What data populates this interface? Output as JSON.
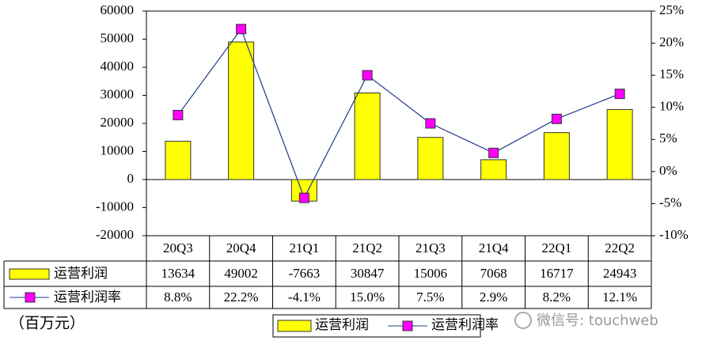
{
  "chart_data": {
    "type": "bar",
    "unit": "（百万元）",
    "watermark": "微信号: touchweb",
    "categories": [
      "20Q3",
      "20Q4",
      "21Q1",
      "21Q2",
      "21Q3",
      "21Q4",
      "22Q1",
      "22Q2"
    ],
    "series": [
      {
        "name": "运营利润",
        "type": "bar",
        "color": "#ffff00",
        "values": [
          13634,
          49002,
          -7663,
          30847,
          15006,
          7068,
          16717,
          24943
        ]
      },
      {
        "name": "运营利润率",
        "type": "line",
        "axis": "y2",
        "color": "#ff00ff",
        "line_color": "#1f3a8a",
        "values": [
          8.8,
          22.2,
          -4.1,
          15.0,
          7.5,
          2.9,
          8.2,
          12.1
        ],
        "value_labels": [
          "8.8%",
          "22.2%",
          "-4.1%",
          "15.0%",
          "7.5%",
          "2.9%",
          "8.2%",
          "12.1%"
        ]
      }
    ],
    "ylim": [
      -20000,
      60000
    ],
    "yticks": [
      -20000,
      -10000,
      0,
      10000,
      20000,
      30000,
      40000,
      50000,
      60000
    ],
    "y2lim": [
      -10,
      25
    ],
    "y2ticks": [
      {
        "value": -10,
        "label": "-10%"
      },
      {
        "value": -5,
        "label": "-5%"
      },
      {
        "value": 0,
        "label": "0%"
      },
      {
        "value": 5,
        "label": "5%"
      },
      {
        "value": 10,
        "label": "10%"
      },
      {
        "value": 15,
        "label": "15%"
      },
      {
        "value": 20,
        "label": "20%"
      },
      {
        "value": 25,
        "label": "25%"
      }
    ],
    "grid": false
  }
}
